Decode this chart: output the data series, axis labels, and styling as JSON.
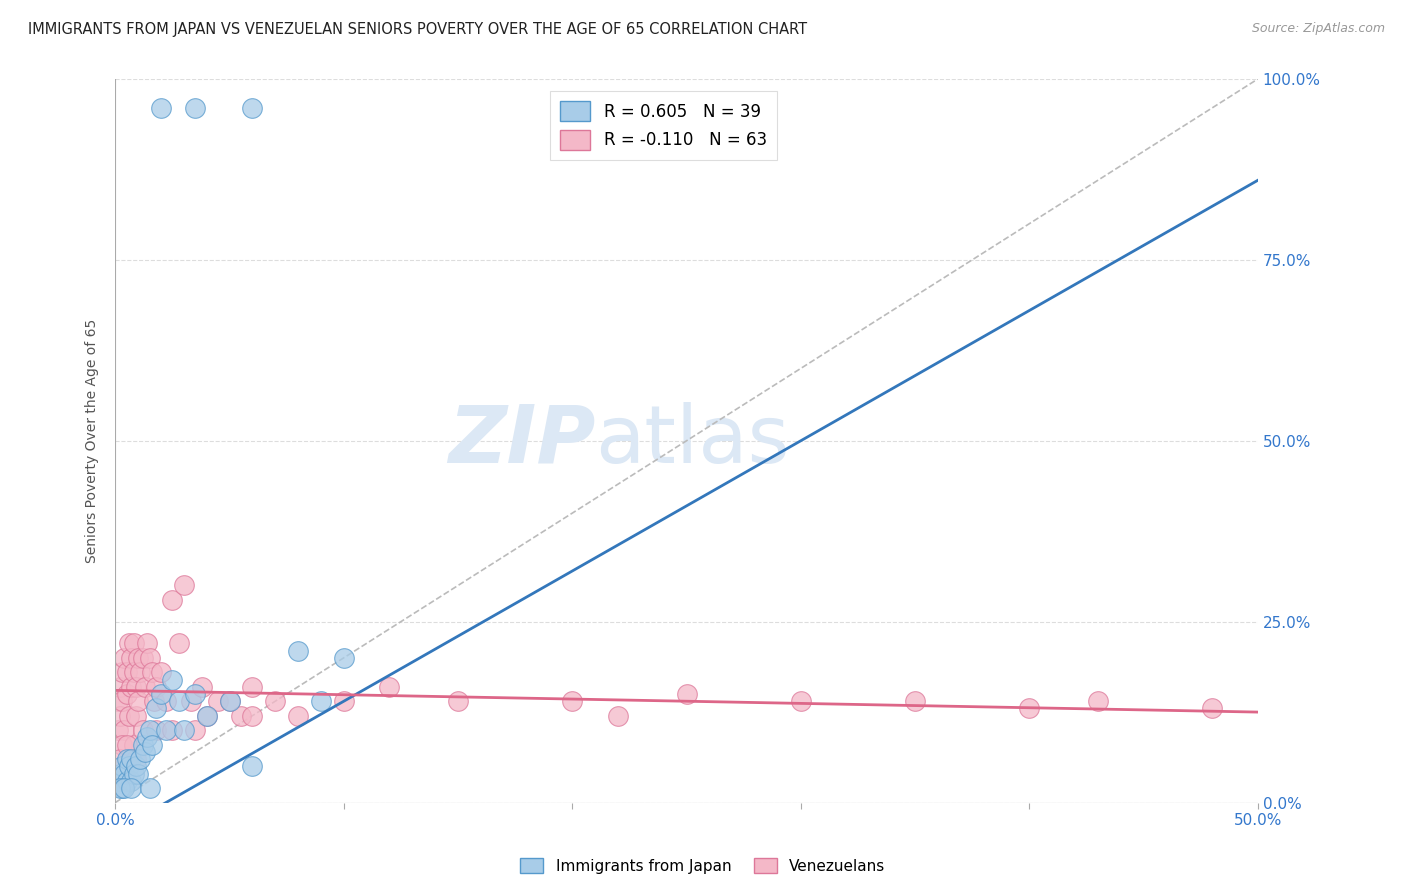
{
  "title": "IMMIGRANTS FROM JAPAN VS VENEZUELAN SENIORS POVERTY OVER THE AGE OF 65 CORRELATION CHART",
  "source": "Source: ZipAtlas.com",
  "ylabel": "Seniors Poverty Over the Age of 65",
  "xlim": [
    0.0,
    0.5
  ],
  "ylim": [
    -0.05,
    1.05
  ],
  "plot_ylim": [
    0.0,
    1.0
  ],
  "xtick_vals": [
    0.0,
    0.1,
    0.2,
    0.3,
    0.4,
    0.5
  ],
  "ytick_vals": [
    0.0,
    0.25,
    0.5,
    0.75,
    1.0
  ],
  "legend1_label": "R = 0.605   N = 39",
  "legend2_label": "R = -0.110   N = 63",
  "legend_series1": "Immigrants from Japan",
  "legend_series2": "Venezuelans",
  "blue_scatter_color": "#a8cce8",
  "blue_edge_color": "#5599cc",
  "blue_line_color": "#3377bb",
  "pink_scatter_color": "#f4b8c8",
  "pink_edge_color": "#dd7799",
  "pink_line_color": "#dd6688",
  "watermark_zip": "ZIP",
  "watermark_atlas": "atlas",
  "watermark_color": "#dce8f5",
  "background_color": "#ffffff",
  "grid_color": "#dddddd",
  "japan_x": [
    0.001,
    0.002,
    0.003,
    0.003,
    0.004,
    0.005,
    0.005,
    0.006,
    0.007,
    0.007,
    0.008,
    0.009,
    0.01,
    0.011,
    0.012,
    0.013,
    0.014,
    0.015,
    0.016,
    0.018,
    0.02,
    0.022,
    0.025,
    0.028,
    0.03,
    0.035,
    0.04,
    0.05,
    0.06,
    0.08,
    0.09,
    0.1,
    0.02,
    0.035,
    0.06,
    0.002,
    0.004,
    0.007,
    0.015
  ],
  "japan_y": [
    0.03,
    0.04,
    0.02,
    0.05,
    0.04,
    0.03,
    0.06,
    0.05,
    0.03,
    0.06,
    0.04,
    0.05,
    0.04,
    0.06,
    0.08,
    0.07,
    0.09,
    0.1,
    0.08,
    0.13,
    0.15,
    0.1,
    0.17,
    0.14,
    0.1,
    0.15,
    0.12,
    0.14,
    0.05,
    0.21,
    0.14,
    0.2,
    0.96,
    0.96,
    0.96,
    0.02,
    0.02,
    0.02,
    0.02
  ],
  "venezuela_x": [
    0.001,
    0.001,
    0.002,
    0.002,
    0.003,
    0.003,
    0.004,
    0.004,
    0.005,
    0.005,
    0.006,
    0.006,
    0.007,
    0.007,
    0.008,
    0.008,
    0.009,
    0.009,
    0.01,
    0.01,
    0.011,
    0.012,
    0.013,
    0.014,
    0.015,
    0.016,
    0.017,
    0.018,
    0.02,
    0.022,
    0.025,
    0.028,
    0.03,
    0.033,
    0.038,
    0.04,
    0.045,
    0.05,
    0.055,
    0.06,
    0.07,
    0.08,
    0.1,
    0.12,
    0.15,
    0.2,
    0.22,
    0.25,
    0.3,
    0.35,
    0.4,
    0.43,
    0.48,
    0.003,
    0.008,
    0.012,
    0.018,
    0.025,
    0.035,
    0.06,
    0.002,
    0.005,
    0.009
  ],
  "venezuela_y": [
    0.1,
    0.14,
    0.12,
    0.16,
    0.14,
    0.18,
    0.1,
    0.2,
    0.15,
    0.18,
    0.22,
    0.12,
    0.2,
    0.16,
    0.18,
    0.22,
    0.12,
    0.16,
    0.14,
    0.2,
    0.18,
    0.2,
    0.16,
    0.22,
    0.2,
    0.18,
    0.14,
    0.16,
    0.18,
    0.14,
    0.28,
    0.22,
    0.3,
    0.14,
    0.16,
    0.12,
    0.14,
    0.14,
    0.12,
    0.16,
    0.14,
    0.12,
    0.14,
    0.16,
    0.14,
    0.14,
    0.12,
    0.15,
    0.14,
    0.14,
    0.13,
    0.14,
    0.13,
    0.08,
    0.08,
    0.1,
    0.1,
    0.1,
    0.1,
    0.12,
    0.06,
    0.08,
    0.06
  ],
  "blue_trendline_x0": 0.0,
  "blue_trendline_y0": -0.04,
  "blue_trendline_x1": 0.5,
  "blue_trendline_y1": 0.86,
  "pink_trendline_x0": 0.0,
  "pink_trendline_y0": 0.155,
  "pink_trendline_x1": 0.5,
  "pink_trendline_y1": 0.125
}
